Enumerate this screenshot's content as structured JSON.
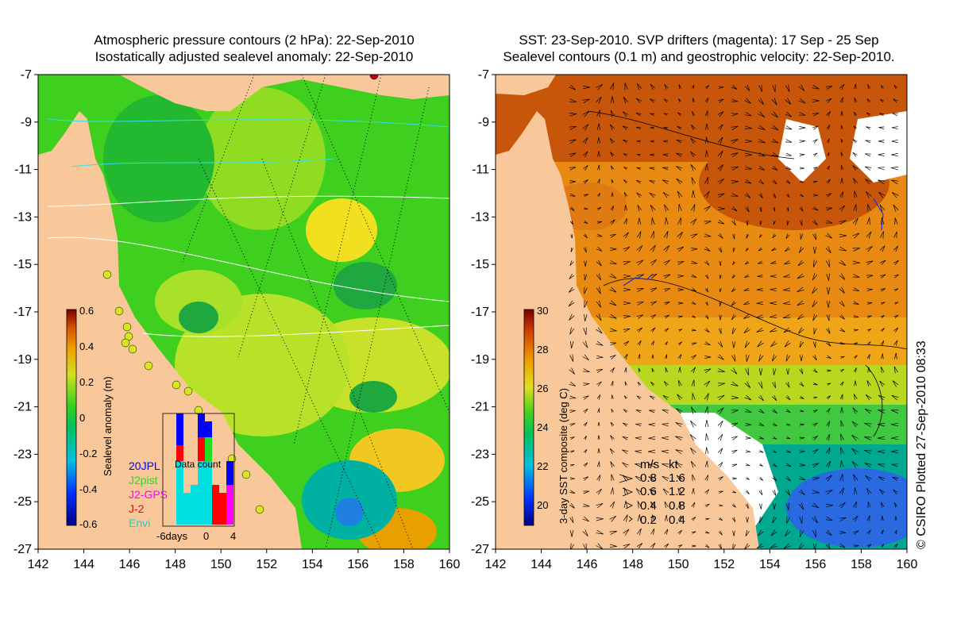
{
  "colors": {
    "land": "#f8c79a",
    "sea_green": "#3ecf1f",
    "sea_lime": "#b8e22a",
    "sea_yellow": "#e8e020",
    "sea_orange": "#e8a000",
    "sst_orange": "#e88a12",
    "sst_red": "#c84a0a",
    "sst_blue": "#2a6ae0",
    "drifter": "#ff00ff",
    "contour_white": "#ffffff",
    "contour_cyan": "#33e0e0",
    "legend_20jpl": "#0000ff",
    "legend_j2pist": "#22dd22",
    "legend_j2gps": "#ff00ff",
    "legend_j2": "#ff0000",
    "legend_envi": "#00e0e0"
  },
  "left_panel": {
    "title_line1": "Atmospheric pressure contours (2 hPa): 22-Sep-2010",
    "title_line2": "Isostatically adjusted sealevel anomaly: 22-Sep-2010",
    "colorbar": {
      "label": "Sealevel anomaly (m)",
      "min": -0.6,
      "max": 0.6,
      "ticks": [
        "0.6",
        "0.4",
        "0.2",
        "0",
        "-0.2",
        "-0.4",
        "-0.6"
      ]
    },
    "inset": {
      "title": "Data count",
      "x_ticks": [
        "-6days",
        "0",
        "4"
      ],
      "legend": [
        "20JPL",
        "J2pist",
        "J2-GPS",
        "J-2",
        "Envi"
      ]
    }
  },
  "right_panel": {
    "title_line1": "SST: 23-Sep-2010. SVP drifters (magenta): 17 Sep - 25 Sep",
    "title_line2": "Sealevel contours (0.1 m) and geostrophic velocity: 22-Sep-2010.",
    "colorbar": {
      "label": "3-day SST composite (deg C)",
      "min": 19,
      "max": 30,
      "ticks": [
        "30",
        "28",
        "26",
        "24",
        "22",
        "20"
      ]
    },
    "velocity_legend": {
      "header_ms": "m/s",
      "header_kt": "kt",
      "rows": [
        {
          "ms": "0.8",
          "kt": "1.6"
        },
        {
          "ms": "0.6",
          "kt": "1.2"
        },
        {
          "ms": "0.4",
          "kt": "0.8"
        },
        {
          "ms": "0.2",
          "kt": "0.4"
        }
      ]
    },
    "copyright": "© CSIRO Plotted 27-Sep-2010 08:33"
  },
  "axes": {
    "lon_ticks": [
      "142",
      "144",
      "146",
      "148",
      "150",
      "152",
      "154",
      "156",
      "158",
      "160"
    ],
    "lat_ticks": [
      "-7",
      "-9",
      "-11",
      "-13",
      "-15",
      "-17",
      "-19",
      "-21",
      "-23",
      "-25",
      "-27"
    ]
  }
}
